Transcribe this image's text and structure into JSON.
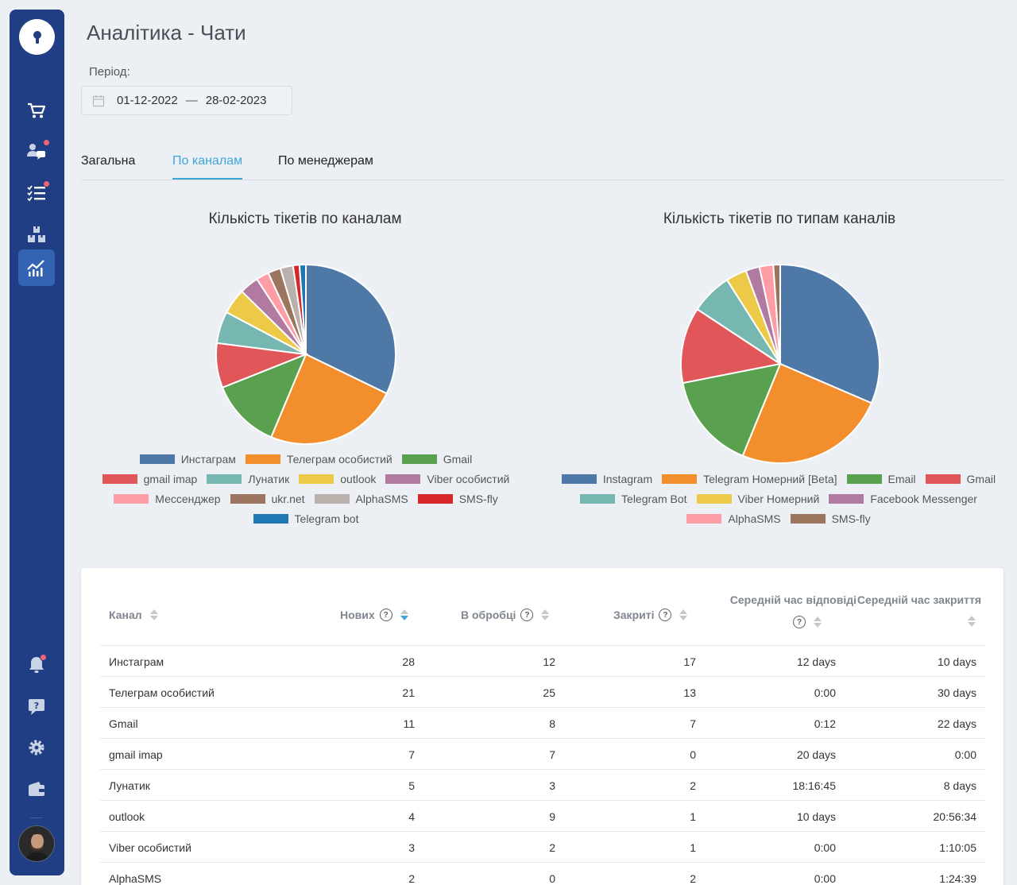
{
  "page": {
    "title": "Аналітика - Чати",
    "period_label": "Період:",
    "date_from": "01-12-2022",
    "date_sep": "—",
    "date_to": "28-02-2023"
  },
  "sidebar": {
    "items": [
      {
        "name": "cart-icon"
      },
      {
        "name": "customers-chat-icon",
        "badge": true
      },
      {
        "name": "task-list-icon",
        "badge": true
      },
      {
        "name": "warehouse-boxes-icon"
      },
      {
        "name": "analytics-chart-icon",
        "active": true
      },
      {
        "name": "bell-icon",
        "badge": true
      },
      {
        "name": "help-chat-icon"
      },
      {
        "name": "settings-gear-icon"
      },
      {
        "name": "wallet-icon"
      }
    ],
    "accent": "#3563b3",
    "badge_color": "#f0647a"
  },
  "tabs": [
    {
      "label": "Загальна"
    },
    {
      "label": "По каналам",
      "active": true
    },
    {
      "label": "По менеджерам"
    }
  ],
  "chart_data": [
    {
      "type": "pie",
      "title": "Кількість тікетів по каналам",
      "categories": [
        "Инстаграм",
        "Телеграм особистий",
        "Gmail",
        "gmail imap",
        "Лунатик",
        "outlook",
        "Viber особистий",
        "Мессенджер",
        "ukr.net",
        "AlphaSMS",
        "SMS-fly",
        "Telegram bot"
      ],
      "values": [
        28,
        21,
        11,
        7,
        5,
        4,
        3,
        2,
        2,
        2,
        1,
        1
      ],
      "colors": [
        "#4e79a7",
        "#f28e2b",
        "#59a14f",
        "#e15759",
        "#76b7b2",
        "#edc948",
        "#b07aa1",
        "#ff9da7",
        "#9c755f",
        "#bab0ac",
        "#d62728",
        "#1f77b4"
      ],
      "legend_position": "bottom"
    },
    {
      "type": "pie",
      "title": "Кількість тікетів по типам каналів",
      "categories": [
        "Instagram",
        "Telegram Номерний [Beta]",
        "Email",
        "Gmail",
        "Telegram Bot",
        "Viber Номерний",
        "Facebook Messenger",
        "AlphaSMS",
        "SMS-fly"
      ],
      "values": [
        28,
        22,
        14,
        11,
        6,
        3,
        2,
        2,
        1
      ],
      "colors": [
        "#4e79a7",
        "#f28e2b",
        "#59a14f",
        "#e15759",
        "#76b7b2",
        "#edc948",
        "#b07aa1",
        "#ff9da7",
        "#9c755f"
      ],
      "legend_position": "bottom"
    }
  ],
  "table": {
    "columns": {
      "channel": "Канал",
      "new": "Нових",
      "in_progress": "В обробці",
      "closed": "Закриті",
      "avg_response_1": "Середній час відповіді",
      "avg_close_1": "Середній час закриття"
    },
    "rows": [
      {
        "channel": "Инстаграм",
        "new": "28",
        "in_progress": "12",
        "closed": "17",
        "avg_response": "12 days",
        "avg_close": "10 days"
      },
      {
        "channel": "Телеграм особистий",
        "new": "21",
        "in_progress": "25",
        "closed": "13",
        "avg_response": "0:00",
        "avg_close": "30 days"
      },
      {
        "channel": "Gmail",
        "new": "11",
        "in_progress": "8",
        "closed": "7",
        "avg_response": "0:12",
        "avg_close": "22 days"
      },
      {
        "channel": "gmail imap",
        "new": "7",
        "in_progress": "7",
        "closed": "0",
        "avg_response": "20 days",
        "avg_close": "0:00"
      },
      {
        "channel": "Лунатик",
        "new": "5",
        "in_progress": "3",
        "closed": "2",
        "avg_response": "18:16:45",
        "avg_close": "8 days"
      },
      {
        "channel": "outlook",
        "new": "4",
        "in_progress": "9",
        "closed": "1",
        "avg_response": "10 days",
        "avg_close": "20:56:34"
      },
      {
        "channel": "Viber особистий",
        "new": "3",
        "in_progress": "2",
        "closed": "1",
        "avg_response": "0:00",
        "avg_close": "1:10:05"
      },
      {
        "channel": "AlphaSMS",
        "new": "2",
        "in_progress": "0",
        "closed": "2",
        "avg_response": "0:00",
        "avg_close": "1:24:39"
      }
    ]
  }
}
